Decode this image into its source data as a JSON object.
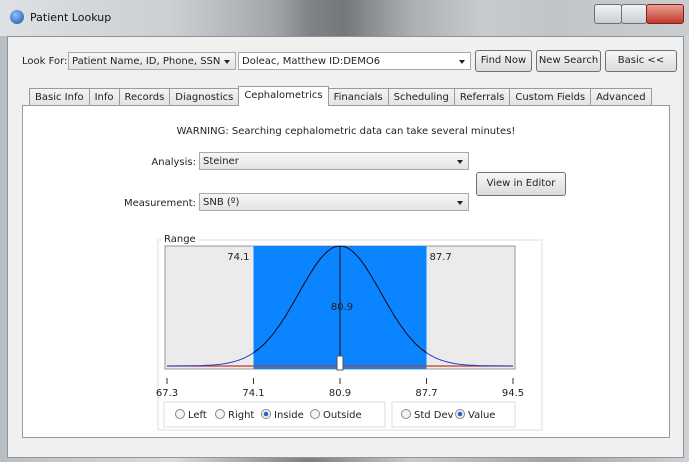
{
  "window": {
    "title": "Patient Lookup"
  },
  "search": {
    "label": "Look For:",
    "type": "Patient Name, ID, Phone, SSN",
    "query": "Doleac, Matthew ID:DEMO6",
    "buttons": [
      "Find Now",
      "New Search",
      "Basic <<"
    ]
  },
  "tabs": {
    "items": [
      "Basic Info",
      "Info",
      "Records",
      "Diagnostics",
      "Cephalometrics",
      "Financials",
      "Scheduling",
      "Referrals",
      "Custom Fields",
      "Advanced"
    ],
    "selected": 4
  },
  "panel": {
    "warning": "WARNING: Searching cephalometric data can take several minutes!",
    "analysis": {
      "label": "Analysis:",
      "value": "Steiner"
    },
    "measurement": {
      "label": "Measurement:",
      "value": "SNB (º)"
    },
    "editor_button": "View in Editor",
    "range": {
      "label": "Range",
      "lower": 74.1,
      "upper": 87.7,
      "mean": 80.9,
      "ticks": [
        67.3,
        74.1,
        80.9,
        87.7,
        94.5
      ],
      "region_options": [
        "Left",
        "Right",
        "Inside",
        "Outside"
      ],
      "region_selected": 2,
      "mode_options": [
        "Std Dev",
        "Value"
      ],
      "mode_selected": 1
    }
  }
}
